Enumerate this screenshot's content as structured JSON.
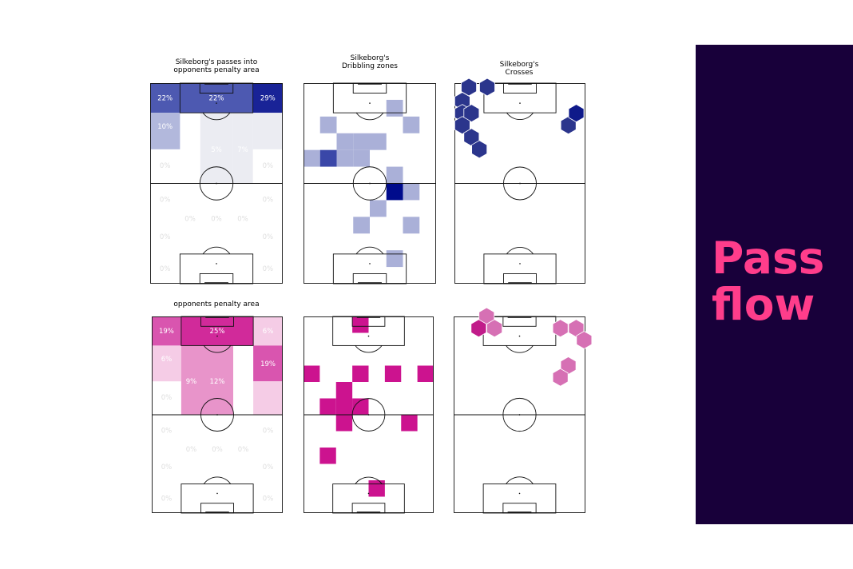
{
  "chart_data": [
    {
      "id": "blue-zones",
      "type": "heatmap",
      "title": "Silkeborg's passes into\nopponents penalty area",
      "colors": {
        "accent": "#000b8c",
        "mid": "#3a47a8",
        "light": "#aab0d8",
        "faint": "#e9eaf1"
      },
      "zones": [
        {
          "zone": "left-wing-box",
          "value": 22,
          "label": "22%"
        },
        {
          "zone": "central-box",
          "value": 22,
          "label": "22%"
        },
        {
          "zone": "right-wing-box",
          "value": 29,
          "label": "29%"
        },
        {
          "zone": "left-wing-mid",
          "value": 10,
          "label": "10%"
        },
        {
          "zone": "left-half-space",
          "value": 0,
          "label": ""
        },
        {
          "zone": "center-mid",
          "value": 5,
          "label": "5%"
        },
        {
          "zone": "right-half-space",
          "value": 7,
          "label": "7%"
        },
        {
          "zone": "right-wing-mid",
          "value": 2,
          "label": ""
        },
        {
          "zone": "left-wing-deep",
          "value": 0,
          "label": "0%"
        },
        {
          "zone": "right-wing-deep",
          "value": 0,
          "label": "0%"
        },
        {
          "zone": "own-left-1",
          "value": 0,
          "label": "0%"
        },
        {
          "zone": "own-right-1",
          "value": 0,
          "label": "0%"
        },
        {
          "zone": "own-left-half",
          "value": 0,
          "label": "0%"
        },
        {
          "zone": "own-center",
          "value": 0,
          "label": "0%"
        },
        {
          "zone": "own-right-half",
          "value": 0,
          "label": "0%"
        },
        {
          "zone": "own-left-2",
          "value": 0,
          "label": "0%"
        },
        {
          "zone": "own-right-2",
          "value": 0,
          "label": "0%"
        },
        {
          "zone": "own-left-3",
          "value": 0,
          "label": "0%"
        },
        {
          "zone": "own-right-3",
          "value": 0,
          "label": "0%"
        }
      ]
    },
    {
      "id": "blue-dribbles",
      "type": "heatmap",
      "title": "Silkeborg's\nDribbling zones",
      "colors": {
        "accent": "#000b8c",
        "mid": "#3a47a8",
        "light": "#aab0d8"
      },
      "grid": {
        "cols": 8,
        "rows": 12
      },
      "cells": [
        {
          "col": 5,
          "row": 1,
          "level": "light"
        },
        {
          "col": 1,
          "row": 2,
          "level": "light"
        },
        {
          "col": 6,
          "row": 2,
          "level": "light"
        },
        {
          "col": 2,
          "row": 3,
          "level": "light"
        },
        {
          "col": 3,
          "row": 3,
          "level": "light"
        },
        {
          "col": 4,
          "row": 3,
          "level": "light"
        },
        {
          "col": 0,
          "row": 4,
          "level": "light"
        },
        {
          "col": 1,
          "row": 4,
          "level": "mid"
        },
        {
          "col": 2,
          "row": 4,
          "level": "light"
        },
        {
          "col": 3,
          "row": 4,
          "level": "light"
        },
        {
          "col": 5,
          "row": 5,
          "level": "light"
        },
        {
          "col": 5,
          "row": 6,
          "level": "accent"
        },
        {
          "col": 6,
          "row": 6,
          "level": "light"
        },
        {
          "col": 4,
          "row": 7,
          "level": "light"
        },
        {
          "col": 3,
          "row": 8,
          "level": "light"
        },
        {
          "col": 6,
          "row": 8,
          "level": "light"
        },
        {
          "col": 5,
          "row": 10,
          "level": "light"
        }
      ]
    },
    {
      "id": "blue-crosses",
      "type": "scatter",
      "title": "Silkeborg's\nCrosses",
      "colors": {
        "accent": "#2b358c",
        "dark": "#0f1a8a"
      },
      "points": [
        {
          "x": 0.11,
          "y": 0.02,
          "tone": "accent"
        },
        {
          "x": 0.25,
          "y": 0.02,
          "tone": "accent"
        },
        {
          "x": 0.06,
          "y": 0.09,
          "tone": "accent"
        },
        {
          "x": 0.06,
          "y": 0.15,
          "tone": "accent"
        },
        {
          "x": 0.13,
          "y": 0.15,
          "tone": "accent"
        },
        {
          "x": 0.06,
          "y": 0.21,
          "tone": "accent"
        },
        {
          "x": 0.13,
          "y": 0.27,
          "tone": "accent"
        },
        {
          "x": 0.19,
          "y": 0.33,
          "tone": "accent"
        },
        {
          "x": 0.87,
          "y": 0.21,
          "tone": "accent"
        },
        {
          "x": 0.93,
          "y": 0.15,
          "tone": "dark"
        }
      ]
    },
    {
      "id": "pink-zones",
      "type": "heatmap",
      "title": "opponents penalty area",
      "colors": {
        "accent": "#cc138f",
        "mid": "#d543a6",
        "light": "#e688c4",
        "faint": "#f4c6e3"
      },
      "zones": [
        {
          "zone": "left-wing-box",
          "value": 19,
          "label": "19%"
        },
        {
          "zone": "central-box",
          "value": 25,
          "label": "25%"
        },
        {
          "zone": "right-wing-box",
          "value": 6,
          "label": "6%"
        },
        {
          "zone": "left-wing-mid",
          "value": 6,
          "label": "6%"
        },
        {
          "zone": "left-half-space",
          "value": 9,
          "label": "9%"
        },
        {
          "zone": "center-mid",
          "value": 12,
          "label": "12%"
        },
        {
          "zone": "right-half-space",
          "value": 0,
          "label": ""
        },
        {
          "zone": "right-wing-mid",
          "value": 19,
          "label": "19%"
        },
        {
          "zone": "left-wing-deep",
          "value": 0,
          "label": "0%"
        },
        {
          "zone": "right-wing-deep",
          "value": 3,
          "label": ""
        },
        {
          "zone": "own-left-1",
          "value": 0,
          "label": "0%"
        },
        {
          "zone": "own-right-1",
          "value": 0,
          "label": "0%"
        },
        {
          "zone": "own-left-half",
          "value": 0,
          "label": "0%"
        },
        {
          "zone": "own-center",
          "value": 0,
          "label": "0%"
        },
        {
          "zone": "own-right-half",
          "value": 0,
          "label": "0%"
        },
        {
          "zone": "own-left-2",
          "value": 0,
          "label": "0%"
        },
        {
          "zone": "own-right-2",
          "value": 0,
          "label": "0%"
        },
        {
          "zone": "own-left-3",
          "value": 0,
          "label": "0%"
        },
        {
          "zone": "own-right-3",
          "value": 0,
          "label": "0%"
        }
      ]
    },
    {
      "id": "pink-dribbles",
      "type": "heatmap",
      "title": "",
      "colors": {
        "accent": "#cc138f"
      },
      "grid": {
        "cols": 8,
        "rows": 12
      },
      "cells": [
        {
          "col": 3,
          "row": 0,
          "level": "accent"
        },
        {
          "col": 0,
          "row": 3,
          "level": "accent"
        },
        {
          "col": 3,
          "row": 3,
          "level": "accent"
        },
        {
          "col": 5,
          "row": 3,
          "level": "accent"
        },
        {
          "col": 7,
          "row": 3,
          "level": "accent"
        },
        {
          "col": 2,
          "row": 4,
          "level": "accent"
        },
        {
          "col": 1,
          "row": 5,
          "level": "accent"
        },
        {
          "col": 2,
          "row": 5,
          "level": "accent"
        },
        {
          "col": 3,
          "row": 5,
          "level": "accent"
        },
        {
          "col": 2,
          "row": 6,
          "level": "accent"
        },
        {
          "col": 6,
          "row": 6,
          "level": "accent"
        },
        {
          "col": 1,
          "row": 8,
          "level": "accent"
        },
        {
          "col": 4,
          "row": 10,
          "level": "accent"
        }
      ]
    },
    {
      "id": "pink-crosses",
      "type": "scatter",
      "title": "",
      "colors": {
        "accent": "#d670b4",
        "dark": "#c11c8a"
      },
      "points": [
        {
          "x": 0.25,
          "y": 0.0,
          "tone": "accent"
        },
        {
          "x": 0.19,
          "y": 0.06,
          "tone": "dark"
        },
        {
          "x": 0.31,
          "y": 0.06,
          "tone": "accent"
        },
        {
          "x": 0.81,
          "y": 0.06,
          "tone": "accent"
        },
        {
          "x": 0.93,
          "y": 0.06,
          "tone": "accent"
        },
        {
          "x": 0.99,
          "y": 0.12,
          "tone": "accent"
        },
        {
          "x": 0.87,
          "y": 0.25,
          "tone": "accent"
        },
        {
          "x": 0.81,
          "y": 0.31,
          "tone": "accent"
        }
      ]
    }
  ],
  "sidebar": {
    "title": "Pass\nflow",
    "background": "#18003a",
    "text_color": "#ff3d8b"
  }
}
